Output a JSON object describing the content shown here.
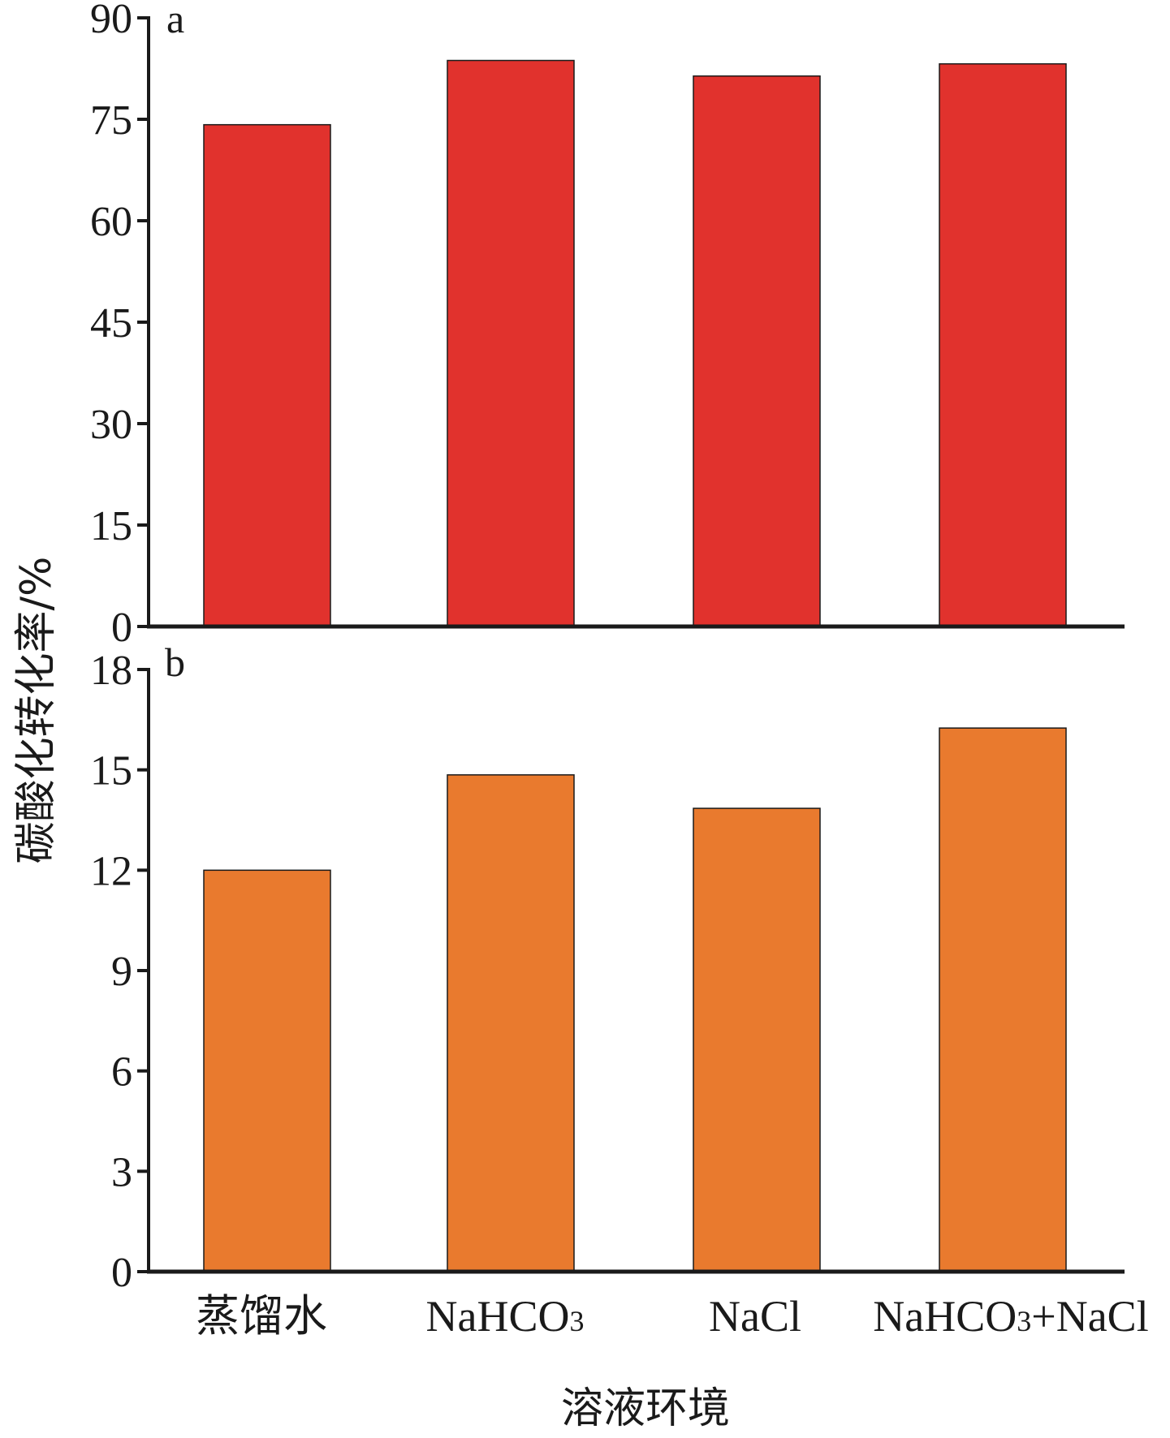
{
  "chart_data": [
    {
      "type": "bar",
      "panel": "a",
      "categories": [
        "蒸馏水",
        "NaHCO3",
        "NaCl",
        "NaHCO3+NaCl"
      ],
      "values": [
        74.2,
        83.7,
        81.4,
        83.2
      ],
      "ylim": [
        0,
        90
      ],
      "yticks": [
        0,
        15,
        30,
        45,
        60,
        75,
        90
      ],
      "color": "#e1322d"
    },
    {
      "type": "bar",
      "panel": "b",
      "categories": [
        "蒸馏水",
        "NaHCO3",
        "NaCl",
        "NaHCO3+NaCl"
      ],
      "values": [
        12.0,
        14.85,
        13.85,
        16.25
      ],
      "ylim": [
        0,
        18
      ],
      "yticks": [
        0,
        3,
        6,
        9,
        12,
        15,
        18
      ],
      "color": "#e97a2e"
    }
  ],
  "ylabel": "碳酸化转化率/%",
  "xlabel": "溶液环境",
  "category_labels": {
    "c0": "蒸馏水",
    "c1_main": "NaHCO",
    "c1_sub": "3",
    "c2": "NaCl",
    "c3_main": "NaHCO",
    "c3_sub": "3",
    "c3_tail": "+NaCl"
  },
  "grid": false,
  "legend": "none"
}
